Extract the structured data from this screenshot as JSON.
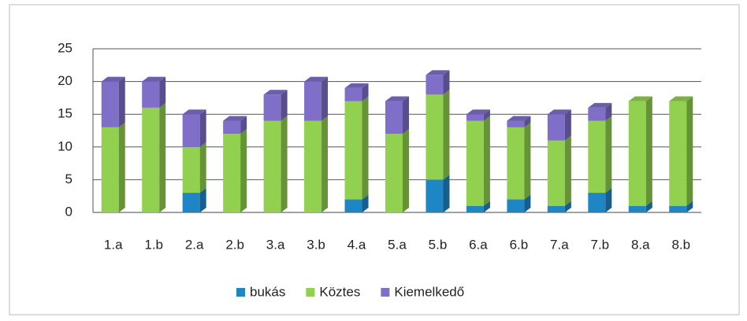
{
  "chart_data": {
    "type": "bar",
    "stacked": true,
    "categories": [
      "1.a",
      "1.b",
      "2.a",
      "2.b",
      "3.a",
      "3.b",
      "4.a",
      "5.a",
      "5.b",
      "6.a",
      "6.b",
      "7.a",
      "7.b",
      "8.a",
      "8.b"
    ],
    "series": [
      {
        "name": "bukás",
        "color": "#1f86c6",
        "values": [
          0,
          0,
          3,
          0,
          0,
          0,
          2,
          0,
          5,
          1,
          2,
          1,
          3,
          1,
          1
        ]
      },
      {
        "name": "Köztes",
        "color": "#92d050",
        "values": [
          13,
          16,
          7,
          12,
          14,
          14,
          15,
          12,
          13,
          13,
          11,
          10,
          11,
          16,
          16
        ]
      },
      {
        "name": "Kiemelkedő",
        "color": "#7f6fc9",
        "values": [
          7,
          4,
          5,
          2,
          4,
          6,
          2,
          5,
          3,
          1,
          1,
          4,
          2,
          0,
          0
        ]
      }
    ],
    "ylim": [
      0,
      25
    ],
    "yticks": [
      0,
      5,
      10,
      15,
      20,
      25
    ],
    "grid": true,
    "legend": "bottom"
  }
}
